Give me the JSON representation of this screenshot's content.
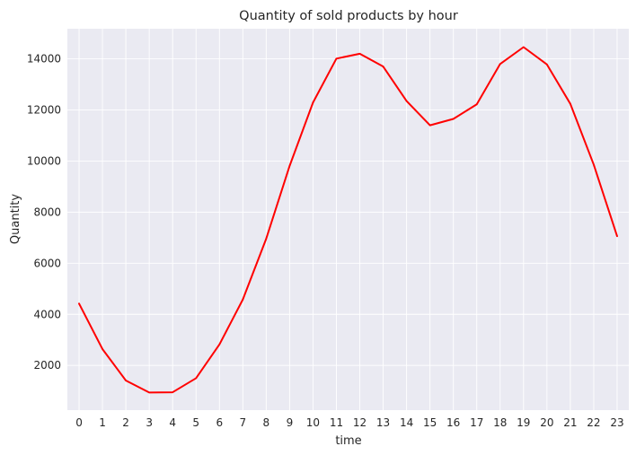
{
  "chart_data": {
    "type": "line",
    "title": "Quantity of sold products by hour",
    "xlabel": "time",
    "ylabel": "Quantity",
    "x": [
      0,
      1,
      2,
      3,
      4,
      5,
      6,
      7,
      8,
      9,
      10,
      11,
      12,
      13,
      14,
      15,
      16,
      17,
      18,
      19,
      20,
      21,
      22,
      23
    ],
    "series": [
      {
        "color": "#ff0000",
        "values": [
          4420,
          2640,
          1410,
          940,
          950,
          1500,
          2820,
          4580,
          6960,
          9810,
          12290,
          14010,
          14200,
          13700,
          12350,
          11400,
          11650,
          12220,
          13800,
          14460,
          13780,
          12240,
          9860,
          7060
        ]
      }
    ],
    "ylim": [
      250,
      15180
    ],
    "xlim": [
      -0.5,
      23.5
    ],
    "yticks": [
      2000,
      4000,
      6000,
      8000,
      10000,
      12000,
      14000
    ],
    "grid": true,
    "style": "seaborn-darkgrid",
    "background_color": "#eaeaf2"
  }
}
